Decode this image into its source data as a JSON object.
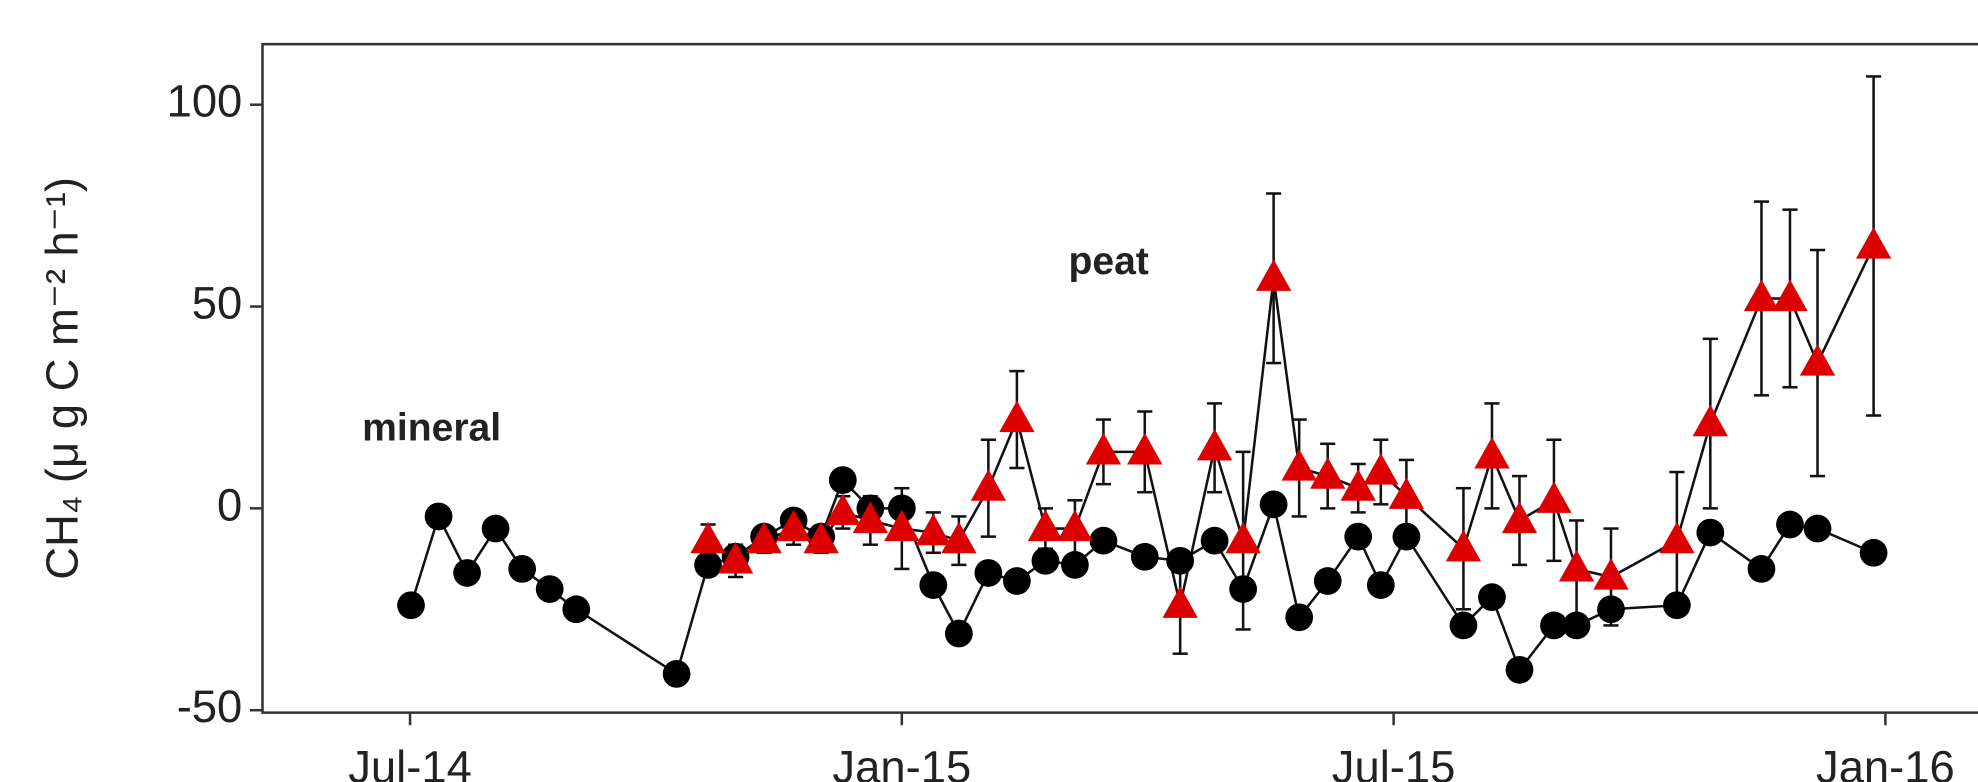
{
  "chart_data": {
    "type": "line",
    "y_label": "CH₄ (μ g C m⁻² h⁻¹)",
    "annotations": [
      {
        "text": "mineral",
        "color": "#000000"
      },
      {
        "text": "peat",
        "color": "#dd0000"
      }
    ],
    "xlim": [
      2014.35,
      2016.094
    ],
    "xticks": [
      {
        "value": 2014.5,
        "label": "Jul-14"
      },
      {
        "value": 2015.0,
        "label": "Jan-15"
      },
      {
        "value": 2015.5,
        "label": "Jul-15"
      },
      {
        "value": 2016.0,
        "label": "Jan-16"
      }
    ],
    "ylim": [
      -50.6,
      115
    ],
    "yticks": [
      -50,
      0,
      50,
      100
    ],
    "series": [
      {
        "name": "mineral",
        "color": "#000000",
        "marker": "circle",
        "x": [
          2014.501,
          2014.529,
          2014.558,
          2014.587,
          2014.614,
          2014.642,
          2014.669,
          2014.771,
          2014.803,
          2014.831,
          2014.86,
          2014.89,
          2014.918,
          2014.94,
          2014.968,
          2015.0,
          2015.032,
          2015.058,
          2015.088,
          2015.117,
          2015.146,
          2015.176,
          2015.205,
          2015.247,
          2015.283,
          2015.318,
          2015.347,
          2015.378,
          2015.404,
          2015.433,
          2015.464,
          2015.487,
          2015.513,
          2015.571,
          2015.6,
          2015.628,
          2015.663,
          2015.686,
          2015.721,
          2015.788,
          2015.822,
          2015.874,
          2015.903,
          2015.931,
          2015.988
        ],
        "values": [
          -24,
          -2,
          -16,
          -5,
          -15,
          -20,
          -25,
          -41,
          -14,
          -12,
          -7,
          -3,
          -7,
          7,
          0,
          0,
          -19,
          -31,
          -16,
          -18,
          -13,
          -14,
          -8,
          -12,
          -13,
          -8,
          -20,
          1,
          -27,
          -18,
          -7,
          -19,
          -7,
          -29,
          -22,
          -40,
          -29,
          -29,
          -25,
          -24,
          -6,
          -15,
          -4,
          -5,
          -11
        ]
      },
      {
        "name": "peat",
        "color": "#dd0000",
        "marker": "triangle",
        "x": [
          2014.803,
          2014.831,
          2014.86,
          2014.89,
          2014.918,
          2014.94,
          2014.968,
          2015.0,
          2015.032,
          2015.058,
          2015.088,
          2015.117,
          2015.146,
          2015.176,
          2015.205,
          2015.247,
          2015.283,
          2015.318,
          2015.347,
          2015.378,
          2015.404,
          2015.433,
          2015.464,
          2015.487,
          2015.513,
          2015.571,
          2015.6,
          2015.628,
          2015.663,
          2015.686,
          2015.721,
          2015.788,
          2015.822,
          2015.874,
          2015.903,
          2015.931,
          2015.988
        ],
        "values": [
          -8,
          -13,
          -8,
          -5,
          -8,
          -1,
          -3,
          -5,
          -6,
          -8,
          5,
          22,
          -5,
          -5,
          14,
          14,
          -24,
          15,
          -8,
          57,
          10,
          8,
          5,
          9,
          3,
          -10,
          13,
          -3,
          2,
          -15,
          -17,
          -8,
          21,
          52,
          52,
          36,
          65
        ],
        "errors": [
          4,
          4,
          3,
          4,
          3,
          4,
          6,
          10,
          5,
          6,
          12,
          12,
          5,
          7,
          8,
          10,
          12,
          11,
          22,
          21,
          12,
          8,
          6,
          8,
          9,
          15,
          13,
          11,
          15,
          12,
          12,
          17,
          21,
          24,
          22,
          28,
          42
        ]
      }
    ]
  }
}
